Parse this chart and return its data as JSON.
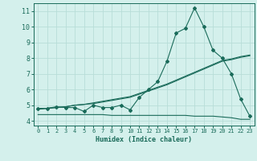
{
  "xlabel": "Humidex (Indice chaleur)",
  "bg_color": "#d4f0ec",
  "line_color": "#1a6b5a",
  "grid_color": "#b8ddd8",
  "xlim": [
    -0.5,
    23.5
  ],
  "ylim": [
    3.7,
    11.5
  ],
  "xticks": [
    0,
    1,
    2,
    3,
    4,
    5,
    6,
    7,
    8,
    9,
    10,
    11,
    12,
    13,
    14,
    15,
    16,
    17,
    18,
    19,
    20,
    21,
    22,
    23
  ],
  "yticks": [
    4,
    5,
    6,
    7,
    8,
    9,
    10,
    11
  ],
  "humidex_curve": [
    4.8,
    4.8,
    4.9,
    4.85,
    4.85,
    4.6,
    5.0,
    4.85,
    4.85,
    5.0,
    4.7,
    5.5,
    6.0,
    6.5,
    7.8,
    9.6,
    9.9,
    11.2,
    10.0,
    8.5,
    8.0,
    7.0,
    5.4,
    4.3
  ],
  "flat_curve1": [
    4.75,
    4.8,
    4.85,
    4.9,
    5.0,
    5.05,
    5.15,
    5.25,
    5.35,
    5.45,
    5.55,
    5.75,
    5.95,
    6.15,
    6.35,
    6.6,
    6.85,
    7.1,
    7.35,
    7.6,
    7.85,
    7.95,
    8.1,
    8.2
  ],
  "flat_curve2": [
    4.75,
    4.8,
    4.85,
    4.9,
    5.0,
    5.05,
    5.1,
    5.2,
    5.3,
    5.4,
    5.5,
    5.7,
    5.9,
    6.1,
    6.3,
    6.55,
    6.8,
    7.05,
    7.3,
    7.55,
    7.8,
    7.9,
    8.05,
    8.15
  ],
  "flat_line": [
    4.4,
    4.4,
    4.4,
    4.4,
    4.4,
    4.4,
    4.4,
    4.4,
    4.35,
    4.35,
    4.35,
    4.35,
    4.35,
    4.35,
    4.35,
    4.35,
    4.35,
    4.3,
    4.3,
    4.3,
    4.25,
    4.2,
    4.1,
    4.1
  ],
  "xlabel_fontsize": 6.0,
  "ytick_fontsize": 6.0,
  "xtick_fontsize": 5.0
}
